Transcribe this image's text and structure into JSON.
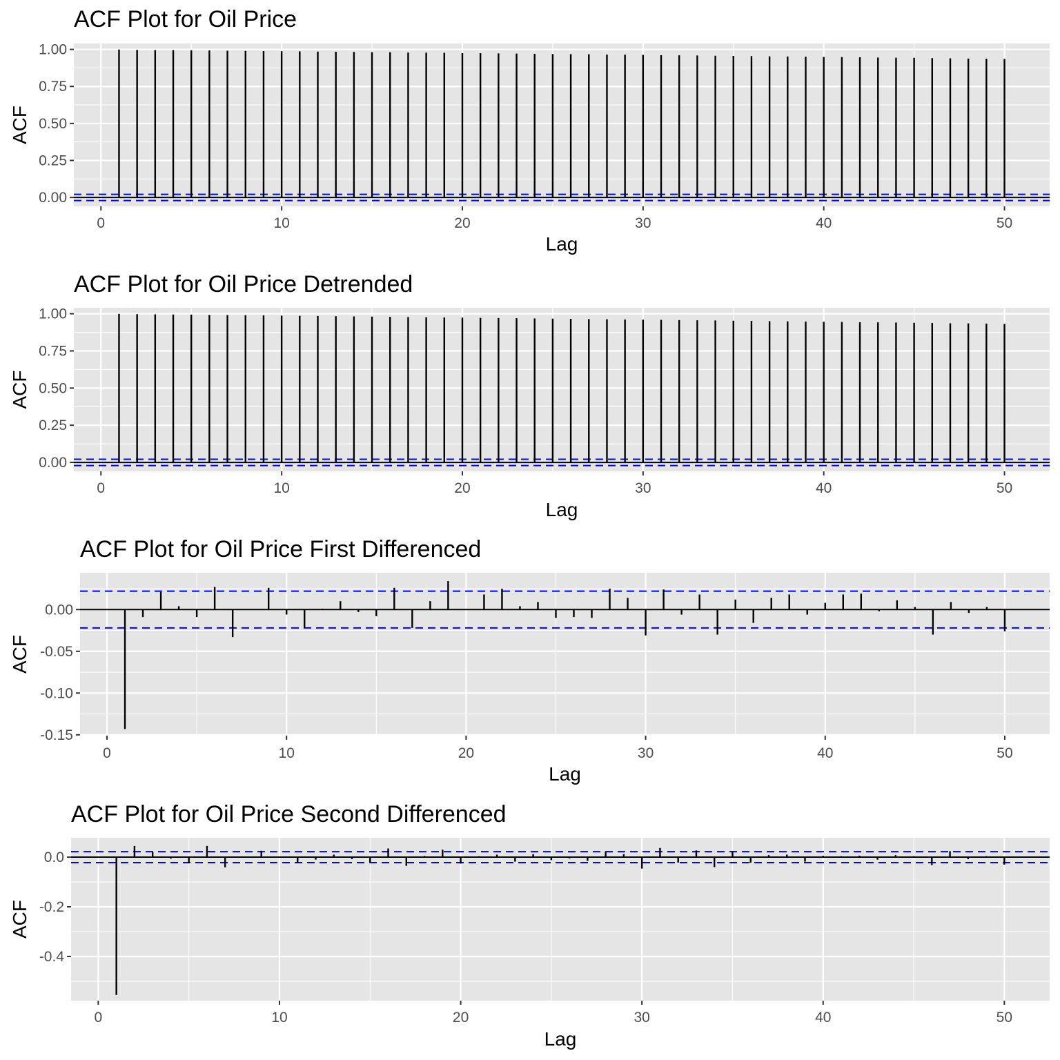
{
  "chart_data": [
    {
      "type": "bar",
      "title": "ACF Plot for Oil Price",
      "xlabel": "Lag",
      "ylabel": "ACF",
      "xlim": [
        -1.5,
        52.5
      ],
      "ylim": [
        -0.06,
        1.04
      ],
      "xticks": [
        0,
        10,
        20,
        30,
        40,
        50
      ],
      "yticks": [
        0,
        0.25,
        0.5,
        0.75,
        1.0
      ],
      "ytick_labels": [
        "0.00",
        "0.25",
        "0.50",
        "0.75",
        "1.00"
      ],
      "ci": 0.021,
      "x": [
        1,
        2,
        3,
        4,
        5,
        6,
        7,
        8,
        9,
        10,
        11,
        12,
        13,
        14,
        15,
        16,
        17,
        18,
        19,
        20,
        21,
        22,
        23,
        24,
        25,
        26,
        27,
        28,
        29,
        30,
        31,
        32,
        33,
        34,
        35,
        36,
        37,
        38,
        39,
        40,
        41,
        42,
        43,
        44,
        45,
        46,
        47,
        48,
        49,
        50
      ],
      "values": [
        0.999,
        0.997,
        0.996,
        0.995,
        0.994,
        0.993,
        0.991,
        0.99,
        0.989,
        0.988,
        0.987,
        0.985,
        0.984,
        0.983,
        0.982,
        0.981,
        0.979,
        0.978,
        0.977,
        0.975,
        0.974,
        0.973,
        0.972,
        0.97,
        0.969,
        0.968,
        0.967,
        0.965,
        0.964,
        0.963,
        0.961,
        0.96,
        0.959,
        0.957,
        0.956,
        0.955,
        0.953,
        0.952,
        0.951,
        0.949,
        0.948,
        0.947,
        0.945,
        0.944,
        0.943,
        0.941,
        0.94,
        0.938,
        0.937,
        0.936
      ],
      "grid": true,
      "ci_color": "#0000ff",
      "bar_color": "#000000",
      "panel_background": "#e5e5e5"
    },
    {
      "type": "bar",
      "title": "ACF Plot for Oil Price Detrended",
      "xlabel": "Lag",
      "ylabel": "ACF",
      "xlim": [
        -1.5,
        52.5
      ],
      "ylim": [
        -0.06,
        1.04
      ],
      "xticks": [
        0,
        10,
        20,
        30,
        40,
        50
      ],
      "yticks": [
        0,
        0.25,
        0.5,
        0.75,
        1.0
      ],
      "ytick_labels": [
        "0.00",
        "0.25",
        "0.50",
        "0.75",
        "1.00"
      ],
      "ci": 0.021,
      "x": [
        1,
        2,
        3,
        4,
        5,
        6,
        7,
        8,
        9,
        10,
        11,
        12,
        13,
        14,
        15,
        16,
        17,
        18,
        19,
        20,
        21,
        22,
        23,
        24,
        25,
        26,
        27,
        28,
        29,
        30,
        31,
        32,
        33,
        34,
        35,
        36,
        37,
        38,
        39,
        40,
        41,
        42,
        43,
        44,
        45,
        46,
        47,
        48,
        49,
        50
      ],
      "values": [
        0.999,
        0.997,
        0.996,
        0.995,
        0.994,
        0.992,
        0.991,
        0.99,
        0.989,
        0.987,
        0.986,
        0.985,
        0.983,
        0.982,
        0.981,
        0.979,
        0.978,
        0.977,
        0.975,
        0.974,
        0.972,
        0.971,
        0.97,
        0.968,
        0.967,
        0.966,
        0.964,
        0.963,
        0.961,
        0.96,
        0.959,
        0.957,
        0.956,
        0.955,
        0.953,
        0.952,
        0.95,
        0.949,
        0.948,
        0.946,
        0.945,
        0.943,
        0.942,
        0.941,
        0.939,
        0.938,
        0.936,
        0.935,
        0.934,
        0.932
      ],
      "grid": true,
      "ci_color": "#0000ff",
      "bar_color": "#000000",
      "panel_background": "#e5e5e5"
    },
    {
      "type": "bar",
      "title": "ACF Plot for Oil Price First Differenced",
      "xlabel": "Lag",
      "ylabel": "ACF",
      "xlim": [
        -1.5,
        52.5
      ],
      "ylim": [
        -0.151,
        0.044
      ],
      "xticks": [
        0,
        10,
        20,
        30,
        40,
        50
      ],
      "yticks": [
        -0.15,
        -0.1,
        -0.05,
        0.0
      ],
      "ytick_labels": [
        "-0.15",
        "-0.10",
        "-0.05",
        "0.00"
      ],
      "ci": 0.022,
      "x": [
        1,
        2,
        3,
        4,
        5,
        6,
        7,
        8,
        9,
        10,
        11,
        12,
        13,
        14,
        15,
        16,
        17,
        18,
        19,
        20,
        21,
        22,
        23,
        24,
        25,
        26,
        27,
        28,
        29,
        30,
        31,
        32,
        33,
        34,
        35,
        36,
        37,
        38,
        39,
        40,
        41,
        42,
        43,
        44,
        45,
        46,
        47,
        48,
        49,
        50
      ],
      "values": [
        -0.143,
        -0.009,
        0.021,
        0.004,
        -0.009,
        0.027,
        -0.033,
        0.0,
        0.026,
        -0.006,
        -0.022,
        0.001,
        0.01,
        -0.003,
        -0.008,
        0.026,
        -0.022,
        0.01,
        0.034,
        0.0,
        0.018,
        0.025,
        0.004,
        0.009,
        -0.01,
        -0.009,
        -0.01,
        0.025,
        0.014,
        -0.031,
        0.024,
        -0.006,
        0.018,
        -0.03,
        0.012,
        -0.016,
        0.014,
        0.018,
        -0.006,
        0.008,
        0.018,
        0.019,
        -0.002,
        0.011,
        0.003,
        -0.03,
        0.009,
        -0.004,
        0.003,
        -0.026
      ],
      "grid": true,
      "ci_color": "#0000ff",
      "bar_color": "#000000",
      "panel_background": "#e5e5e5"
    },
    {
      "type": "bar",
      "title": "ACF Plot for Oil Price Second Differenced",
      "xlabel": "Lag",
      "ylabel": "ACF",
      "xlim": [
        -1.5,
        52.5
      ],
      "ylim": [
        -0.578,
        0.078
      ],
      "xticks": [
        0,
        10,
        20,
        30,
        40,
        50
      ],
      "yticks": [
        -0.4,
        -0.2,
        0.0
      ],
      "ytick_labels": [
        "-0.4",
        "-0.2",
        "0.0"
      ],
      "ci": 0.022,
      "x": [
        1,
        2,
        3,
        4,
        5,
        6,
        7,
        8,
        9,
        10,
        11,
        12,
        13,
        14,
        15,
        16,
        17,
        18,
        19,
        20,
        21,
        22,
        23,
        24,
        25,
        26,
        27,
        28,
        29,
        30,
        31,
        32,
        33,
        34,
        35,
        36,
        37,
        38,
        39,
        40,
        41,
        42,
        43,
        44,
        45,
        46,
        47,
        48,
        49,
        50
      ],
      "values": [
        -0.555,
        0.045,
        0.02,
        -0.006,
        -0.025,
        0.045,
        -0.041,
        0.002,
        0.026,
        0.002,
        -0.024,
        -0.01,
        0.01,
        -0.008,
        -0.02,
        0.035,
        -0.035,
        0.005,
        0.03,
        -0.026,
        0.004,
        0.01,
        -0.018,
        0.012,
        -0.012,
        -0.005,
        -0.015,
        0.022,
        0.012,
        -0.046,
        0.037,
        -0.022,
        0.027,
        -0.04,
        0.025,
        -0.022,
        0.008,
        0.01,
        -0.018,
        0.006,
        0.004,
        0.006,
        -0.01,
        0.008,
        0.004,
        -0.032,
        0.024,
        -0.008,
        0.004,
        -0.03
      ],
      "grid": true,
      "ci_color": "#0000ff",
      "bar_color": "#000000",
      "panel_background": "#e5e5e5"
    }
  ]
}
